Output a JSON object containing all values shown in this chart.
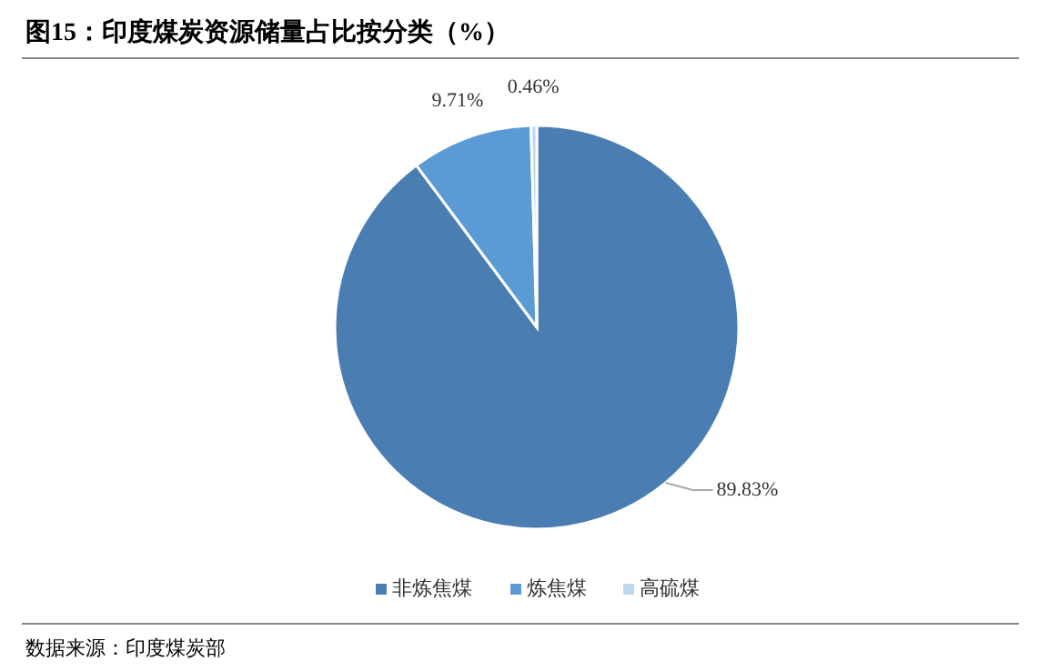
{
  "chart_data": {
    "type": "pie",
    "title": "图15：印度煤炭资源储量占比按分类（%）",
    "categories": [
      "非炼焦煤",
      "炼焦煤",
      "高硫煤"
    ],
    "values": [
      89.83,
      9.71,
      0.46
    ],
    "colors": [
      "#4a7eb3",
      "#5b9bd5",
      "#bdd7ee"
    ],
    "value_labels": [
      "89.83%",
      "9.71%",
      "0.46%"
    ],
    "legend": "bottom",
    "annotations": [
      "数据来源：印度煤炭部"
    ]
  }
}
